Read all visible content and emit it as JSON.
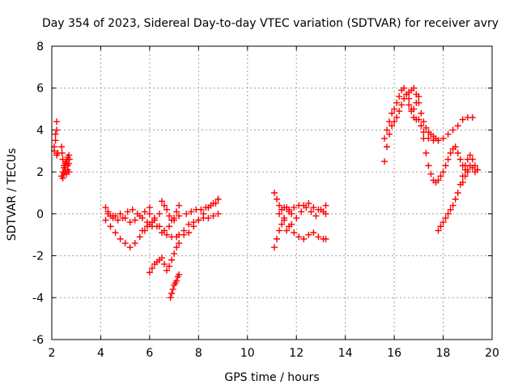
{
  "chart_data": {
    "type": "scatter",
    "title": "Day 354 of 2023, Sidereal Day-to-day VTEC variation (SDTVAR) for receiver avry",
    "xlabel": "GPS time / hours",
    "ylabel": "SDTVAR / TECUs",
    "xlim": [
      2,
      20
    ],
    "ylim": [
      -6,
      8
    ],
    "xticks": [
      2,
      4,
      6,
      8,
      10,
      12,
      14,
      16,
      18,
      20
    ],
    "yticks": [
      -6,
      -4,
      -2,
      0,
      2,
      4,
      6,
      8
    ],
    "grid": true,
    "marker": "+",
    "marker_color": "#ff0000",
    "series": [
      {
        "name": "SDTVAR",
        "segments": [
          {
            "x": [
              2.1,
              2.15,
              2.2,
              2.2,
              2.15,
              2.1,
              2.2,
              2.25
            ],
            "y": [
              3.0,
              3.5,
              4.0,
              4.4,
              3.8,
              3.2,
              2.8,
              2.9
            ]
          },
          {
            "x": [
              2.4,
              2.42,
              2.45,
              2.5,
              2.55,
              2.6,
              2.65,
              2.7,
              2.72,
              2.7,
              2.65,
              2.6,
              2.55,
              2.5,
              2.45,
              2.4,
              2.45,
              2.5,
              2.55,
              2.6,
              2.65,
              2.7
            ],
            "y": [
              3.2,
              2.9,
              2.6,
              2.3,
              2.0,
              1.9,
              2.1,
              2.4,
              2.6,
              2.8,
              2.7,
              2.5,
              2.4,
              2.2,
              2.0,
              1.8,
              1.7,
              1.9,
              2.2,
              2.5,
              2.3,
              2.0
            ]
          },
          {
            "x": [
              4.2,
              4.3,
              4.4,
              4.5,
              4.6,
              4.8,
              5.0,
              5.2,
              5.4,
              5.6,
              5.8,
              6.0
            ],
            "y": [
              0.3,
              0.1,
              -0.1,
              -0.2,
              -0.1,
              0.0,
              -0.2,
              -0.4,
              -0.3,
              -0.1,
              0.1,
              0.3
            ]
          },
          {
            "x": [
              4.2,
              4.4,
              4.6,
              4.8,
              5.0,
              5.2,
              5.4,
              5.6,
              5.8,
              6.0,
              6.2,
              6.4
            ],
            "y": [
              -0.3,
              -0.6,
              -0.9,
              -1.2,
              -1.4,
              -1.6,
              -1.4,
              -1.1,
              -0.8,
              -0.5,
              -0.2,
              0.0
            ]
          },
          {
            "x": [
              4.3,
              4.5,
              4.7,
              4.9,
              5.1,
              5.3,
              5.5,
              5.7,
              5.9,
              6.1
            ],
            "y": [
              0.0,
              -0.1,
              -0.3,
              -0.2,
              0.1,
              0.2,
              0.0,
              -0.2,
              -0.4,
              -0.6
            ]
          },
          {
            "x": [
              5.7,
              5.9,
              6.1,
              6.3,
              6.5,
              6.7,
              6.9,
              7.1,
              7.2
            ],
            "y": [
              -0.8,
              -0.6,
              -0.4,
              -0.6,
              -0.9,
              -1.0,
              -1.1,
              -1.1,
              -1.0
            ]
          },
          {
            "x": [
              6.0,
              6.2,
              6.4,
              6.6,
              6.8,
              7.0,
              7.2
            ],
            "y": [
              0.0,
              -0.3,
              -0.6,
              -0.8,
              -0.6,
              -0.3,
              -0.1
            ]
          },
          {
            "x": [
              6.5,
              6.6,
              6.7,
              6.8,
              6.9,
              7.0,
              7.1,
              7.2
            ],
            "y": [
              0.6,
              0.4,
              0.2,
              -0.1,
              -0.3,
              -0.2,
              0.1,
              0.4
            ]
          },
          {
            "x": [
              6.0,
              6.1,
              6.2,
              6.3,
              6.4,
              6.5,
              6.6,
              6.7,
              6.8,
              6.9,
              7.0,
              7.1,
              7.2
            ],
            "y": [
              -2.8,
              -2.6,
              -2.4,
              -2.3,
              -2.2,
              -2.1,
              -2.4,
              -2.7,
              -2.5,
              -2.2,
              -1.9,
              -1.6,
              -1.4
            ]
          },
          {
            "x": [
              6.85,
              6.9,
              6.95,
              7.0,
              7.05,
              7.1,
              7.15,
              7.2
            ],
            "y": [
              -4.0,
              -3.8,
              -3.6,
              -3.4,
              -3.3,
              -3.2,
              -3.0,
              -2.9
            ]
          },
          {
            "x": [
              7.4,
              7.6,
              7.8,
              8.0,
              8.2,
              8.4,
              8.6,
              8.8
            ],
            "y": [
              -0.8,
              -0.5,
              -0.4,
              -0.3,
              -0.2,
              -0.2,
              -0.1,
              0.0
            ]
          },
          {
            "x": [
              7.4,
              7.6,
              7.8,
              8.0,
              8.2,
              8.4,
              8.6,
              8.8
            ],
            "y": [
              -1.0,
              -0.9,
              -0.6,
              -0.3,
              0.0,
              0.3,
              0.5,
              0.7
            ]
          },
          {
            "x": [
              7.5,
              7.7,
              7.9,
              8.1,
              8.3,
              8.5,
              8.7,
              8.8
            ],
            "y": [
              0.0,
              0.1,
              0.2,
              0.2,
              0.3,
              0.4,
              0.5,
              0.7
            ]
          },
          {
            "x": [
              11.1,
              11.2,
              11.3,
              11.4,
              11.5,
              11.6,
              11.7,
              11.8
            ],
            "y": [
              1.0,
              0.7,
              0.4,
              0.2,
              0.3,
              0.3,
              0.2,
              0.0
            ]
          },
          {
            "x": [
              11.1,
              11.2,
              11.3,
              11.4,
              11.5,
              11.7,
              11.9,
              12.1,
              12.3,
              12.5,
              12.7,
              12.9,
              13.1,
              13.2
            ],
            "y": [
              -1.6,
              -1.2,
              -0.8,
              -0.5,
              -0.2,
              0.1,
              0.3,
              0.4,
              0.4,
              0.5,
              0.3,
              0.2,
              0.1,
              0.0
            ]
          },
          {
            "x": [
              11.3,
              11.5,
              11.7,
              11.9,
              12.1,
              12.3,
              12.5,
              12.7,
              12.9,
              13.1,
              13.2
            ],
            "y": [
              0.0,
              -0.3,
              -0.6,
              -0.9,
              -1.1,
              -1.2,
              -1.0,
              -0.9,
              -1.1,
              -1.2,
              -1.2
            ]
          },
          {
            "x": [
              11.6,
              11.8,
              12.0,
              12.2,
              12.4,
              12.6,
              12.8,
              13.0,
              13.2
            ],
            "y": [
              -0.8,
              -0.5,
              -0.2,
              0.1,
              0.3,
              0.1,
              -0.1,
              0.2,
              0.4
            ]
          },
          {
            "x": [
              15.6,
              15.7,
              15.8,
              15.9,
              16.0,
              16.1,
              16.2,
              16.3,
              16.4,
              16.5,
              16.6,
              16.7,
              16.8,
              16.9,
              17.0,
              17.1,
              17.2,
              17.3,
              17.4,
              17.5,
              17.6,
              17.7,
              17.8
            ],
            "y": [
              2.5,
              3.2,
              3.8,
              4.2,
              4.4,
              4.6,
              4.9,
              5.2,
              5.5,
              5.7,
              5.8,
              5.9,
              6.0,
              5.7,
              5.3,
              4.8,
              4.4,
              4.1,
              3.9,
              3.8,
              3.7,
              3.6,
              3.5
            ]
          },
          {
            "x": [
              15.6,
              15.7,
              15.8,
              15.9,
              16.0,
              16.1,
              16.2,
              16.3,
              16.4,
              16.5,
              16.6,
              16.7,
              16.8,
              16.9,
              17.0
            ],
            "y": [
              3.6,
              4.0,
              4.4,
              4.8,
              5.0,
              5.3,
              5.6,
              5.9,
              6.0,
              5.7,
              5.2,
              4.9,
              5.0,
              5.3,
              5.6
            ]
          },
          {
            "x": [
              16.6,
              16.7,
              16.8,
              16.9,
              17.0,
              17.1,
              17.2,
              17.3,
              17.4,
              17.5,
              17.6,
              17.7,
              17.8,
              17.9,
              18.0,
              18.1,
              18.2,
              18.3,
              18.4,
              18.5,
              18.6,
              18.7,
              18.8,
              18.9,
              19.0
            ],
            "y": [
              5.5,
              5.0,
              4.6,
              4.5,
              4.5,
              4.2,
              3.6,
              2.9,
              2.3,
              1.9,
              1.6,
              1.5,
              1.6,
              1.8,
              2.0,
              2.3,
              2.6,
              2.9,
              3.1,
              3.2,
              2.9,
              2.6,
              2.3,
              2.1,
              2.0
            ]
          },
          {
            "x": [
              17.2,
              17.4,
              17.6,
              17.8,
              18.0,
              18.2,
              18.4,
              18.6,
              18.8,
              19.0,
              19.2
            ],
            "y": [
              3.9,
              3.6,
              3.5,
              3.5,
              3.6,
              3.8,
              4.0,
              4.2,
              4.5,
              4.6,
              4.6
            ]
          },
          {
            "x": [
              17.8,
              17.9,
              18.0,
              18.1,
              18.2,
              18.3,
              18.4,
              18.5,
              18.6,
              18.7,
              18.8,
              18.9,
              19.0,
              19.1,
              19.2,
              19.3,
              19.4
            ],
            "y": [
              -0.8,
              -0.6,
              -0.4,
              -0.2,
              0.0,
              0.2,
              0.4,
              0.7,
              1.0,
              1.4,
              1.8,
              2.3,
              2.6,
              2.8,
              2.6,
              2.3,
              2.1
            ]
          },
          {
            "x": [
              18.8,
              18.9,
              19.0,
              19.1,
              19.2,
              19.3,
              19.4
            ],
            "y": [
              1.5,
              1.8,
              2.1,
              2.3,
              2.2,
              2.0,
              2.1
            ]
          }
        ]
      }
    ]
  }
}
